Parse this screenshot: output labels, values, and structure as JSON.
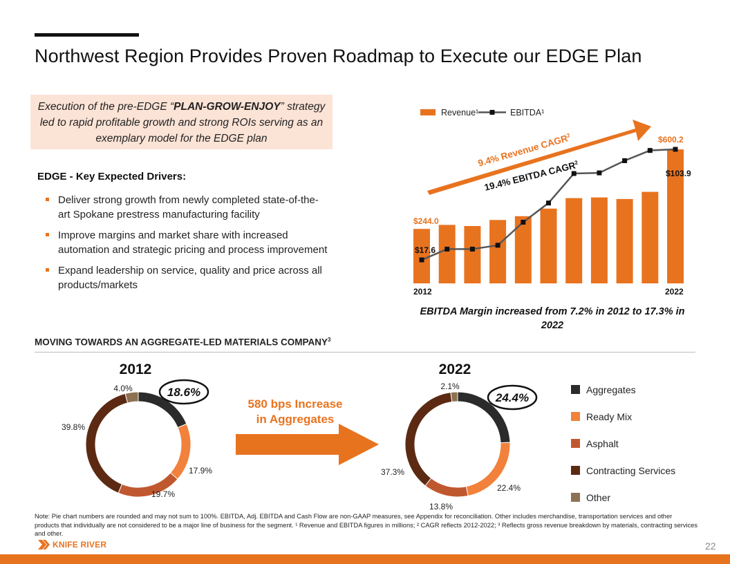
{
  "slide": {
    "title": "Northwest Region Provides Proven Roadmap to Execute our EDGE Plan",
    "page_number": "22",
    "logo_text": "KNIFE RIVER"
  },
  "callout": {
    "line1_pre": "Execution of the pre-EDGE “",
    "line1_bold": "PLAN-GROW-ENJOY",
    "line1_post": "”",
    "rest": "strategy led to rapid profitable growth and strong ROIs serving as an exemplary model for the EDGE plan"
  },
  "drivers": {
    "heading": "EDGE - Key Expected Drivers:",
    "items": [
      "Deliver strong growth from newly completed state-of-the-art Spokane prestress manufacturing  facility",
      "Improve margins and market share with increased automation and strategic pricing and process improvement",
      "Expand leadership on service, quality and price across all products/markets"
    ]
  },
  "section_heading": "MOVING TOWARDS AN AGGREGATE-LED MATERIALS COMPANY",
  "section_heading_sup": "3",
  "ebitda_note": "EBITDA Margin increased from 7.2% in 2012 to 17.3% in 2022",
  "arrow_text": "580 bps Increase in Aggregates",
  "footnote": "Note: Pie chart numbers are rounded and may not sum to 100%. EBITDA,  Adj. EBITDA  and Cash Flow are non-GAAP measures, see Appendix for reconciliation. Other includes merchandise, transportation services and other products that individually are not considered to be a major line  of business for the segment. ¹ Revenue and EBITDA  figures in millions;  ² CAGR reflects 2012-2022; ³ Reflects gross revenue breakdown by materials, contracting services and other.",
  "colors": {
    "orange": "#e8731f",
    "orange_dark": "#d9640f",
    "aggregates": "#2b2b2b",
    "ready_mix": "#f2813b",
    "asphalt": "#c0582f",
    "contracting": "#5c2a12",
    "other": "#8c7152",
    "line": "#555555"
  },
  "chart_data": [
    {
      "type": "bar",
      "legend": [
        "Revenue¹",
        "EBITDA¹"
      ],
      "categories": [
        "2012",
        "",
        "",
        "",
        "",
        "",
        "",
        "",
        "",
        "",
        "2022"
      ],
      "x_tick_labels": {
        "first": "2012",
        "last": "2022"
      },
      "series": [
        {
          "name": "Revenue¹",
          "type": "bar",
          "values": [
            244.0,
            262,
            257,
            284,
            301,
            335,
            382,
            385,
            378,
            410,
            600.2
          ]
        },
        {
          "name": "EBITDA¹",
          "type": "line",
          "values": [
            17.6,
            26,
            26,
            29,
            47,
            62,
            85,
            85.5,
            95,
            103,
            103.9
          ]
        }
      ],
      "data_labels": {
        "revenue_first": "$244.0",
        "revenue_last": "$600.2",
        "ebitda_first": "$17.6",
        "ebitda_last": "$103.9"
      },
      "annotations": {
        "revenue_cagr": "9.4% Revenue CAGR",
        "ebitda_cagr": "19.4% EBITDA CAGR",
        "sup": "2"
      }
    },
    {
      "type": "pie",
      "title": "2012",
      "categories": [
        "Aggregates",
        "Ready Mix",
        "Asphalt",
        "Contracting Services",
        "Other"
      ],
      "values": [
        18.6,
        17.9,
        19.7,
        39.8,
        4.0
      ],
      "labels": [
        "18.6%",
        "17.9%",
        "19.7%",
        "39.8%",
        "4.0%"
      ]
    },
    {
      "type": "pie",
      "title": "2022",
      "categories": [
        "Aggregates",
        "Ready Mix",
        "Asphalt",
        "Contracting Services",
        "Other"
      ],
      "values": [
        24.4,
        22.4,
        13.8,
        37.3,
        2.1
      ],
      "labels": [
        "24.4%",
        "22.4%",
        "13.8%",
        "37.3%",
        "2.1%"
      ]
    }
  ]
}
